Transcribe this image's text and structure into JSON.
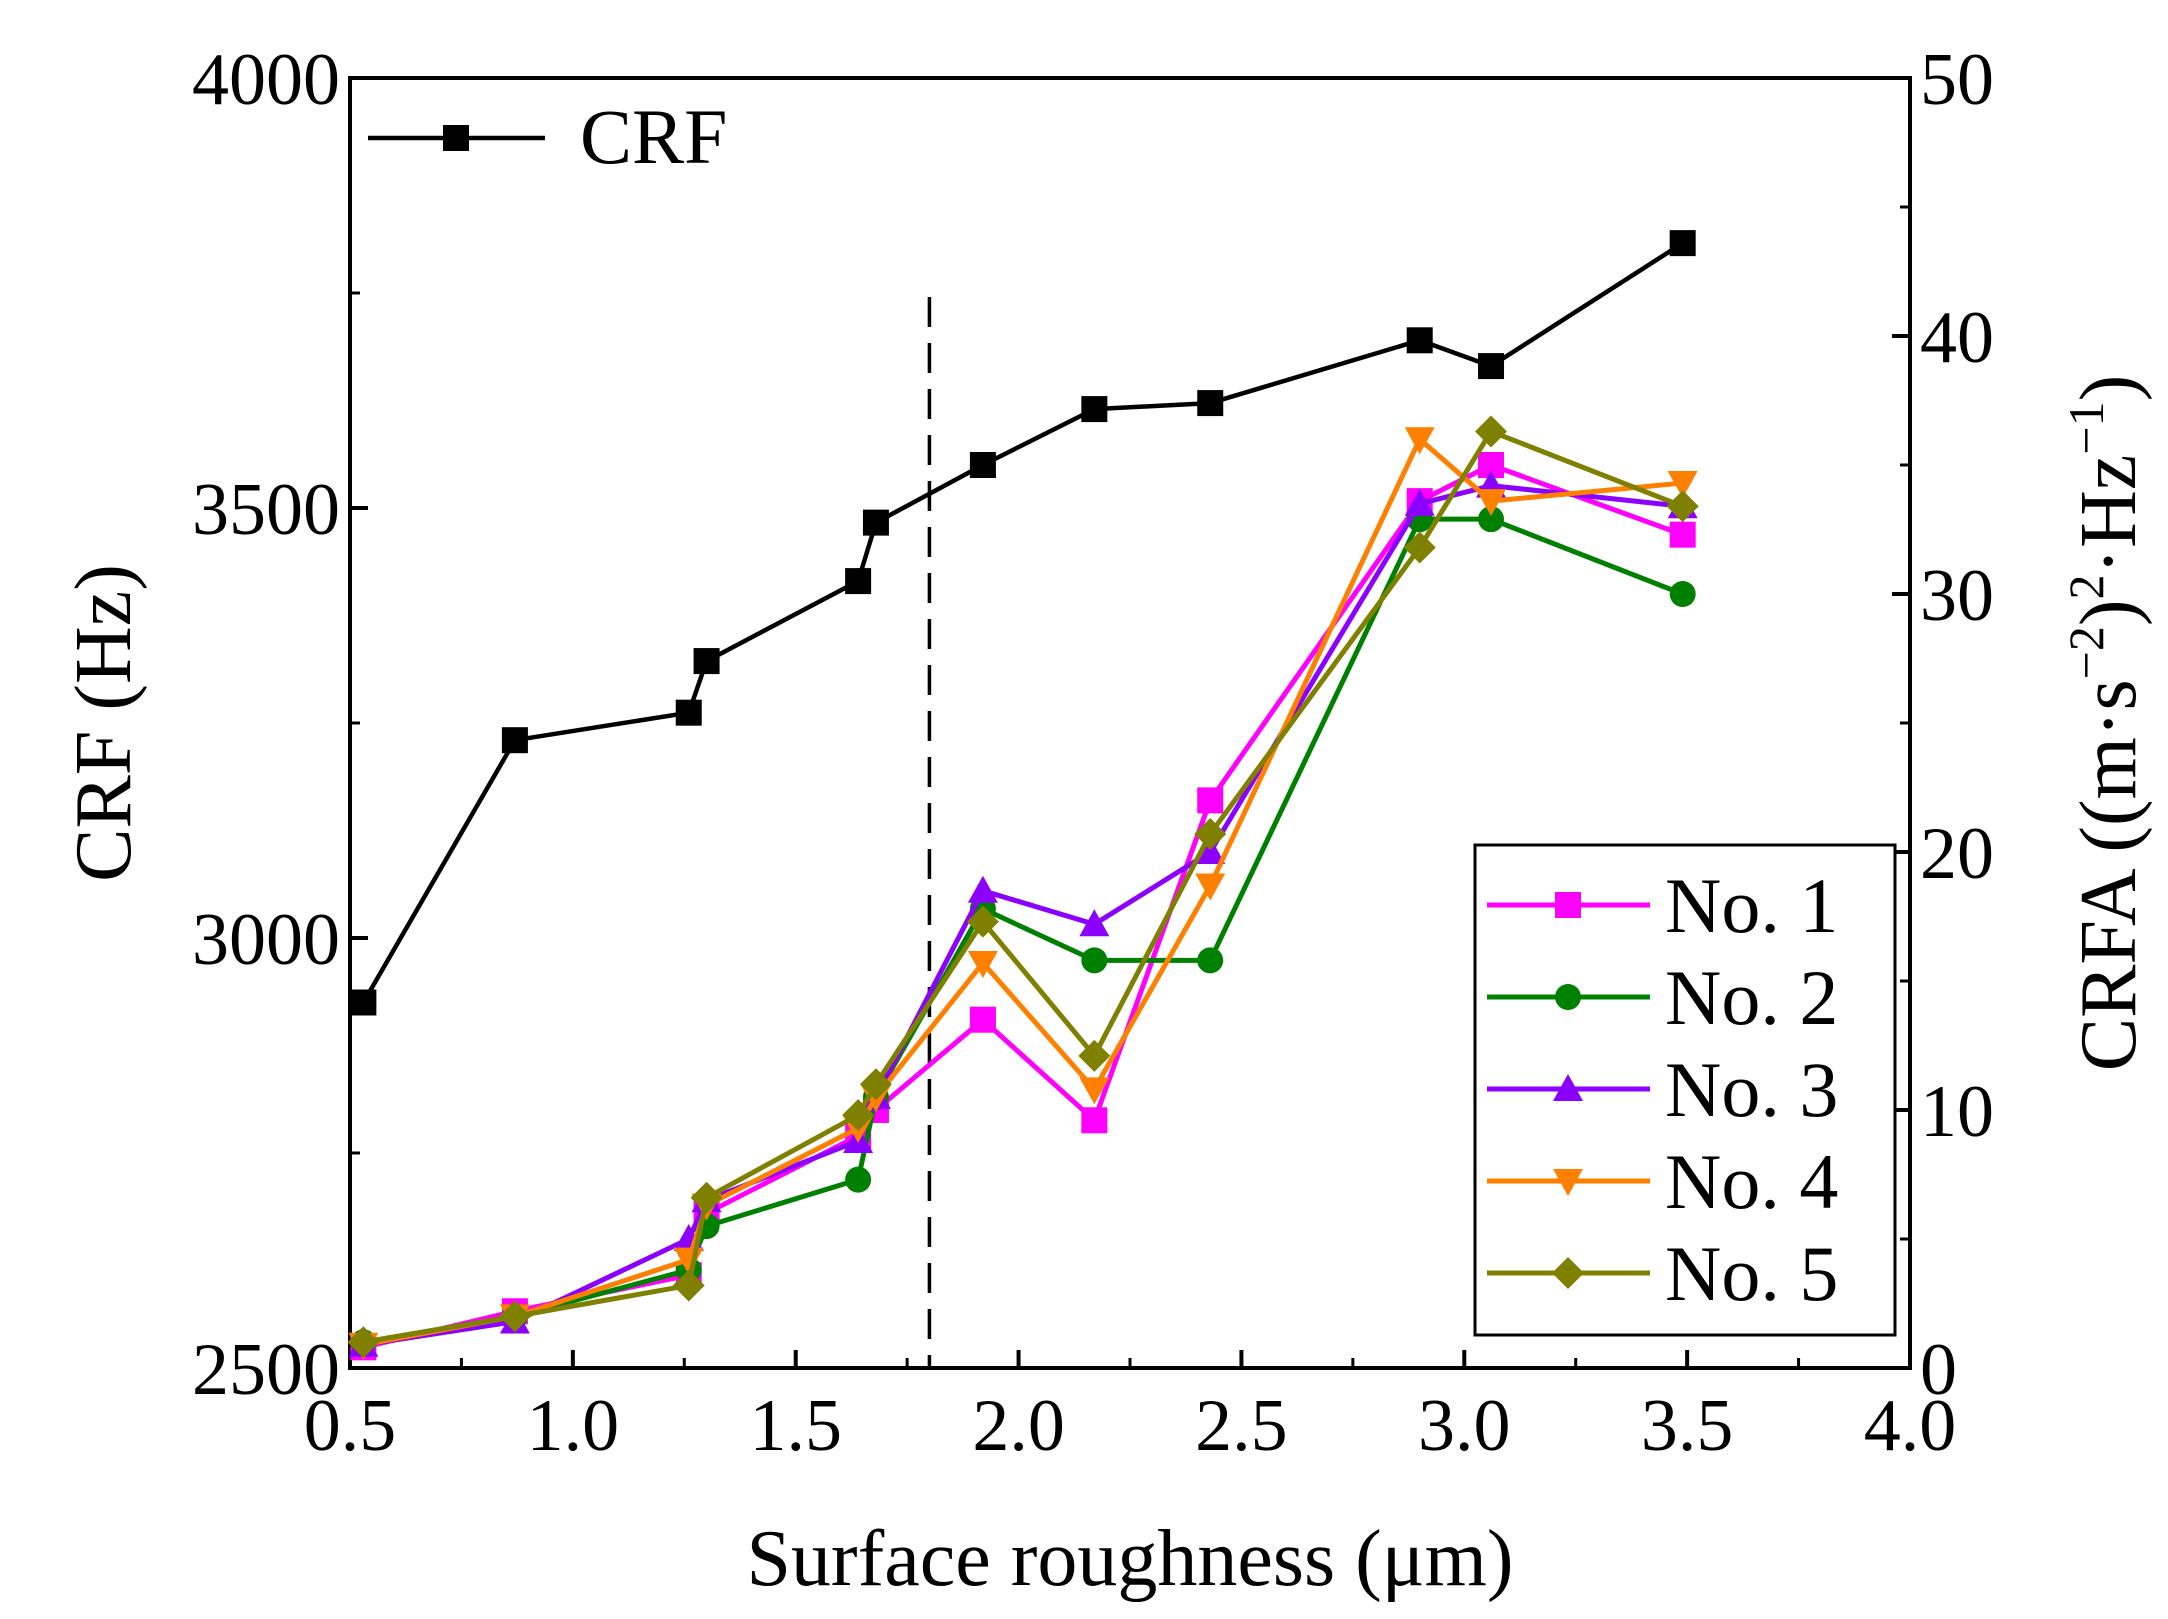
{
  "chart_data": {
    "type": "line",
    "xlabel": "Surface roughness (μm)",
    "ylabel_left": "CRF (Hz)",
    "ylabel_right_parts": {
      "prefix": "CRFA ((m·s",
      "sup1": "−2",
      "mid": ")",
      "sup2": "2",
      "dot_hz": "·Hz",
      "sup3": "−1",
      "suffix": ")"
    },
    "xlim": [
      0.5,
      4.0
    ],
    "ylim_left": [
      2500,
      4000
    ],
    "ylim_right": [
      0,
      50
    ],
    "x_ticks": [
      0.5,
      1.0,
      1.5,
      2.0,
      2.5,
      3.0,
      3.5,
      4.0
    ],
    "x_tick_labels": [
      "0.5",
      "1.0",
      "1.5",
      "2.0",
      "2.5",
      "3.0",
      "3.5",
      "4.0"
    ],
    "y_left_ticks": [
      2500,
      3000,
      3500,
      4000
    ],
    "y_left_tick_labels": [
      "2500",
      "3000",
      "3500",
      "4000"
    ],
    "y_right_ticks": [
      0,
      10,
      20,
      30,
      40,
      50
    ],
    "y_right_tick_labels": [
      "0",
      "10",
      "20",
      "30",
      "40",
      "50"
    ],
    "vline_x": 1.8,
    "legend_crf": {
      "location": "top-left",
      "label": "CRF"
    },
    "legend_crfa": {
      "location": "bottom-right"
    },
    "x": [
      0.53,
      0.87,
      1.26,
      1.3,
      1.64,
      1.68,
      1.92,
      2.17,
      2.43,
      2.9,
      3.06,
      3.49
    ],
    "crf_series": {
      "name": "CRF",
      "axis": "left",
      "color": "#000000",
      "marker": "square",
      "values": [
        2925,
        3230,
        3262,
        3322,
        3415,
        3483,
        3550,
        3615,
        3622,
        3695,
        3665,
        3808
      ]
    },
    "series": [
      {
        "name": "No. 1",
        "axis": "right",
        "color": "#ff00ff",
        "marker": "square",
        "values": [
          0.8,
          2.2,
          3.6,
          6.0,
          9.0,
          10.0,
          13.5,
          9.6,
          22.0,
          33.6,
          35.0,
          32.3
        ]
      },
      {
        "name": "No. 2",
        "axis": "right",
        "color": "#008000",
        "marker": "circle",
        "values": [
          1.0,
          2.0,
          3.8,
          5.5,
          7.3,
          10.5,
          17.8,
          15.8,
          15.8,
          32.9,
          32.9,
          30.0
        ]
      },
      {
        "name": "No. 3",
        "axis": "right",
        "color": "#8b00ff",
        "marker": "triangle-up",
        "values": [
          0.9,
          1.8,
          5.0,
          6.5,
          8.8,
          10.5,
          18.5,
          17.2,
          20.0,
          33.5,
          34.2,
          33.4
        ]
      },
      {
        "name": "No. 4",
        "axis": "right",
        "color": "#ff8000",
        "marker": "triangle-down",
        "values": [
          0.9,
          2.0,
          4.2,
          6.3,
          9.3,
          10.5,
          15.7,
          10.8,
          18.7,
          36.0,
          33.6,
          34.3
        ]
      },
      {
        "name": "No. 5",
        "axis": "right",
        "color": "#808000",
        "marker": "diamond",
        "values": [
          1.0,
          2.0,
          3.2,
          6.6,
          9.8,
          11.0,
          17.3,
          12.1,
          20.7,
          31.8,
          36.3,
          33.4
        ]
      }
    ]
  }
}
